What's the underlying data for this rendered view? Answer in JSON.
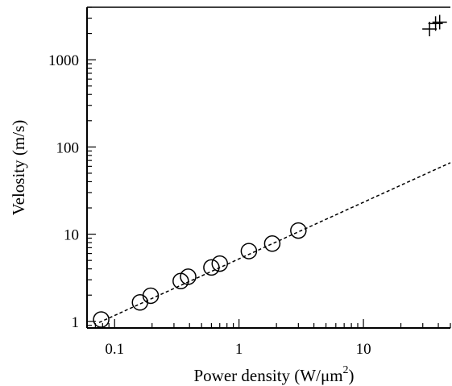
{
  "chart_data": {
    "type": "scatter",
    "xscale": "log",
    "yscale": "log",
    "xlim": [
      0.06,
      50
    ],
    "ylim": [
      0.84,
      4000
    ],
    "xlabel": "Power density  (W/μm",
    "xlabel_superscript": "2",
    "xlabel_suffix": ")",
    "ylabel": "Velosity  (m/s)",
    "x_ticks": [
      {
        "value": 0.1,
        "label": "0.1"
      },
      {
        "value": 1,
        "label": "1"
      },
      {
        "value": 10,
        "label": "10"
      }
    ],
    "y_ticks": [
      {
        "value": 1,
        "label": "1"
      },
      {
        "value": 10,
        "label": "10"
      },
      {
        "value": 100,
        "label": "100"
      },
      {
        "value": 1000,
        "label": "1000"
      }
    ],
    "series": [
      {
        "marker": "circle",
        "points": [
          {
            "x": 0.078,
            "y": 1.05
          },
          {
            "x": 0.16,
            "y": 1.65
          },
          {
            "x": 0.195,
            "y": 1.97
          },
          {
            "x": 0.34,
            "y": 2.9
          },
          {
            "x": 0.39,
            "y": 3.25
          },
          {
            "x": 0.6,
            "y": 4.15
          },
          {
            "x": 0.7,
            "y": 4.6
          },
          {
            "x": 1.2,
            "y": 6.4
          },
          {
            "x": 1.85,
            "y": 7.8
          },
          {
            "x": 3.0,
            "y": 11.0
          }
        ]
      },
      {
        "marker": "cross",
        "points": [
          {
            "x": 34,
            "y": 2250
          },
          {
            "x": 38,
            "y": 2600
          },
          {
            "x": 41,
            "y": 2700
          }
        ]
      }
    ],
    "fit_line": {
      "style": "dashed",
      "x": [
        0.075,
        50
      ],
      "y": [
        0.97,
        66
      ]
    },
    "grid": false
  }
}
